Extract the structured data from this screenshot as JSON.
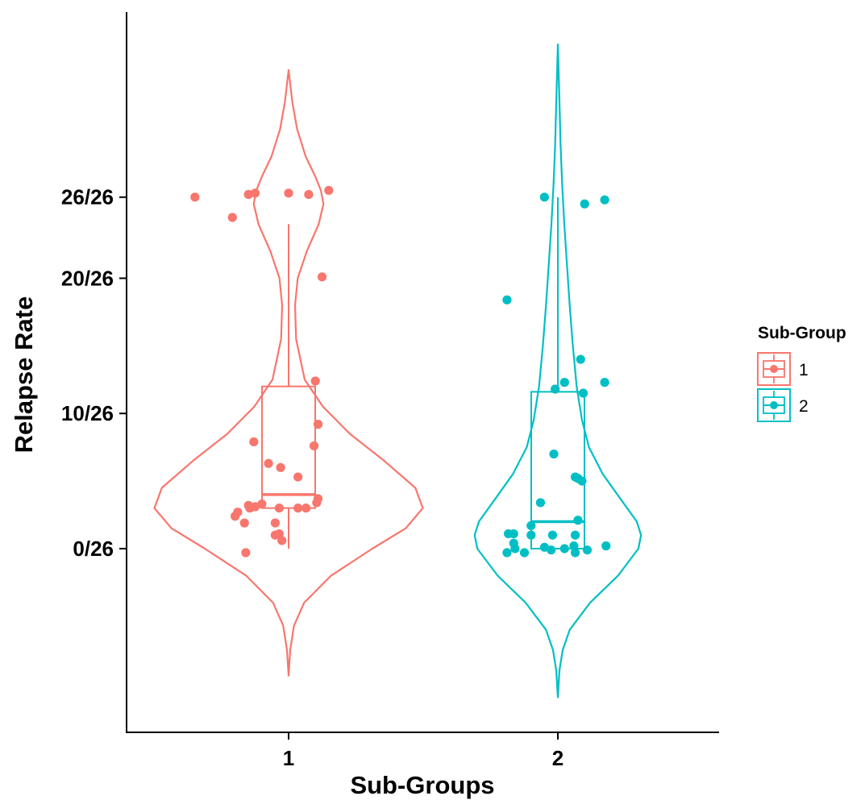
{
  "chart_data": {
    "type": "violin",
    "title": "",
    "xlabel": "Sub-Groups",
    "ylabel": "Relapse Rate",
    "categories": [
      "1",
      "2"
    ],
    "y_ticks": [
      {
        "value": 0,
        "label": "0/26"
      },
      {
        "value": 10,
        "label": "10/26"
      },
      {
        "value": 20,
        "label": "20/26"
      },
      {
        "value": 26,
        "label": "26/26"
      }
    ],
    "ylim": [
      -11.5,
      39
    ],
    "grid": false,
    "legend": {
      "title": "Sub-Group",
      "position": "right",
      "entries": [
        {
          "label": "1",
          "color": "#F8766D"
        },
        {
          "label": "2",
          "color": "#00BFC4"
        }
      ]
    },
    "series": [
      {
        "group": "1",
        "color": "#F8766D",
        "boxplot": {
          "lower_whisker": 0,
          "q1": 3,
          "median": 4,
          "q3": 12,
          "upper_whisker": 24
        },
        "violin": {
          "min": -9.4,
          "max": 35.4,
          "profile": [
            [
              -9.4,
              0
            ],
            [
              -7.5,
              3
            ],
            [
              -5.7,
              10
            ],
            [
              -4,
              29
            ],
            [
              -2,
              79
            ],
            [
              0,
              156
            ],
            [
              1.5,
              218
            ],
            [
              3,
              250
            ],
            [
              4.5,
              236
            ],
            [
              6.5,
              178
            ],
            [
              8.5,
              114
            ],
            [
              10.5,
              64
            ],
            [
              12.5,
              30
            ],
            [
              15.5,
              14
            ],
            [
              18,
              12
            ],
            [
              20,
              17
            ],
            [
              22,
              34
            ],
            [
              24,
              56
            ],
            [
              25.5,
              65
            ],
            [
              26.5,
              60
            ],
            [
              27.5,
              50
            ],
            [
              29,
              32
            ],
            [
              31,
              16
            ],
            [
              33,
              7
            ],
            [
              35.4,
              0
            ]
          ]
        },
        "points": [
          [
            -0.7,
            26
          ],
          [
            -0.3,
            26.2
          ],
          [
            -0.25,
            26.3
          ],
          [
            0,
            26.3
          ],
          [
            0.15,
            26.2
          ],
          [
            0.3,
            26.5
          ],
          [
            -0.42,
            24.5
          ],
          [
            0.25,
            20.1
          ],
          [
            0.2,
            12.4
          ],
          [
            0.22,
            9.2
          ],
          [
            0.19,
            7.6
          ],
          [
            -0.26,
            7.9
          ],
          [
            -0.15,
            6.3
          ],
          [
            -0.06,
            6
          ],
          [
            0.07,
            5.3
          ],
          [
            0.21,
            3.4
          ],
          [
            0.22,
            3.7
          ],
          [
            -0.2,
            3.3
          ],
          [
            -0.25,
            3.1
          ],
          [
            -0.29,
            3
          ],
          [
            -0.3,
            3.2
          ],
          [
            -0.07,
            3
          ],
          [
            0.07,
            3
          ],
          [
            0.13,
            3
          ],
          [
            -0.38,
            2.7
          ],
          [
            -0.4,
            2.4
          ],
          [
            -0.33,
            1.9
          ],
          [
            -0.1,
            1.9
          ],
          [
            -0.1,
            1
          ],
          [
            -0.05,
            0.6
          ],
          [
            -0.07,
            1.1
          ],
          [
            -0.32,
            -0.3
          ]
        ]
      },
      {
        "group": "2",
        "color": "#00BFC4",
        "boxplot": {
          "lower_whisker": 0,
          "q1": 0,
          "median": 2,
          "q3": 11.6,
          "upper_whisker": 26
        },
        "violin": {
          "min": -11,
          "max": 37.3,
          "profile": [
            [
              -11,
              0
            ],
            [
              -9,
              3
            ],
            [
              -7.5,
              9
            ],
            [
              -6,
              22
            ],
            [
              -4,
              60
            ],
            [
              -2,
              112
            ],
            [
              0,
              150
            ],
            [
              1,
              155
            ],
            [
              2,
              147
            ],
            [
              3.5,
              120
            ],
            [
              5.5,
              84
            ],
            [
              7.5,
              58
            ],
            [
              9.5,
              45
            ],
            [
              12,
              35
            ],
            [
              15,
              28
            ],
            [
              18,
              22
            ],
            [
              21,
              17
            ],
            [
              24,
              12
            ],
            [
              27,
              8
            ],
            [
              30,
              5
            ],
            [
              33,
              3
            ],
            [
              37.3,
              0
            ]
          ]
        },
        "points": [
          [
            -0.1,
            26
          ],
          [
            0.2,
            25.5
          ],
          [
            0.35,
            25.8
          ],
          [
            -0.38,
            18.4
          ],
          [
            0.17,
            14
          ],
          [
            0.35,
            12.3
          ],
          [
            0.05,
            12.3
          ],
          [
            -0.02,
            11.8
          ],
          [
            0.19,
            11.5
          ],
          [
            -0.03,
            7
          ],
          [
            0.13,
            5.3
          ],
          [
            0.15,
            5.2
          ],
          [
            0.18,
            5
          ],
          [
            -0.13,
            3.4
          ],
          [
            0.15,
            2.1
          ],
          [
            -0.2,
            1.7
          ],
          [
            -0.33,
            1.1
          ],
          [
            -0.37,
            1.1
          ],
          [
            -0.2,
            1
          ],
          [
            -0.04,
            1
          ],
          [
            0.13,
            1
          ],
          [
            -0.33,
            0.4
          ],
          [
            -0.1,
            0.1
          ],
          [
            0.12,
            0.2
          ],
          [
            0.36,
            0.2
          ],
          [
            -0.32,
            0
          ],
          [
            -0.25,
            -0.3
          ],
          [
            -0.05,
            -0.1
          ],
          [
            0.13,
            -0.3
          ],
          [
            0.22,
            -0.1
          ],
          [
            0.05,
            0
          ],
          [
            -0.38,
            -0.3
          ]
        ]
      }
    ]
  }
}
